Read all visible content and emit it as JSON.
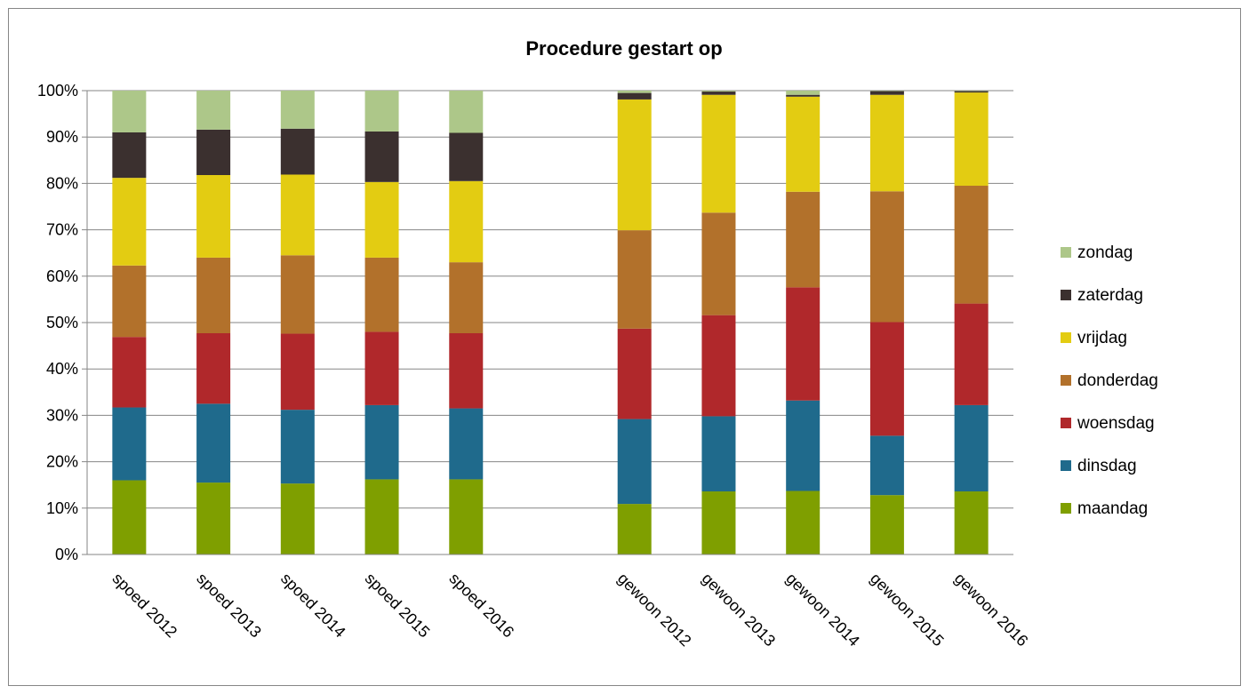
{
  "chart_data": {
    "type": "bar",
    "stacked": true,
    "percent_stacked": true,
    "title": "Procedure gestart op",
    "categories": [
      "spoed 2012",
      "spoed 2013",
      "spoed 2014",
      "spoed 2015",
      "spoed 2016",
      "",
      "gewoon 2012",
      "gewoon 2013",
      "gewoon 2014",
      "gewoon 2015",
      "gewoon 2016"
    ],
    "yticks": [
      "0%",
      "10%",
      "20%",
      "30%",
      "40%",
      "50%",
      "60%",
      "70%",
      "80%",
      "90%",
      "100%"
    ],
    "ylim": [
      0,
      100
    ],
    "grid": true,
    "legend_position": "right",
    "series": [
      {
        "name": "maandag",
        "color": "#7f9f00",
        "values": [
          16.0,
          15.5,
          15.3,
          16.2,
          16.2,
          null,
          10.9,
          13.6,
          13.7,
          12.8,
          13.6
        ]
      },
      {
        "name": "dinsdag",
        "color": "#1f6a8c",
        "values": [
          15.7,
          17.0,
          15.9,
          16.0,
          15.3,
          null,
          18.3,
          16.2,
          19.5,
          12.8,
          18.6
        ]
      },
      {
        "name": "woensdag",
        "color": "#b0282b",
        "values": [
          15.2,
          15.2,
          16.4,
          15.8,
          16.2,
          null,
          19.5,
          21.8,
          24.4,
          24.5,
          21.9
        ]
      },
      {
        "name": "donderdag",
        "color": "#b2712b",
        "values": [
          15.4,
          16.3,
          16.9,
          16.0,
          15.3,
          null,
          21.2,
          22.1,
          20.6,
          28.2,
          25.4
        ]
      },
      {
        "name": "vrijdag",
        "color": "#e3cc12",
        "values": [
          18.9,
          17.8,
          17.4,
          16.3,
          17.5,
          null,
          28.2,
          25.4,
          20.5,
          20.8,
          20.1
        ]
      },
      {
        "name": "zaterdag",
        "color": "#3b302f",
        "values": [
          9.8,
          9.8,
          9.9,
          10.9,
          10.4,
          null,
          1.4,
          0.7,
          0.4,
          0.8,
          0.3
        ]
      },
      {
        "name": "zondag",
        "color": "#adc789",
        "values": [
          9.0,
          8.4,
          8.2,
          8.8,
          9.1,
          null,
          0.5,
          0.2,
          0.9,
          0.1,
          0.1
        ]
      }
    ]
  }
}
